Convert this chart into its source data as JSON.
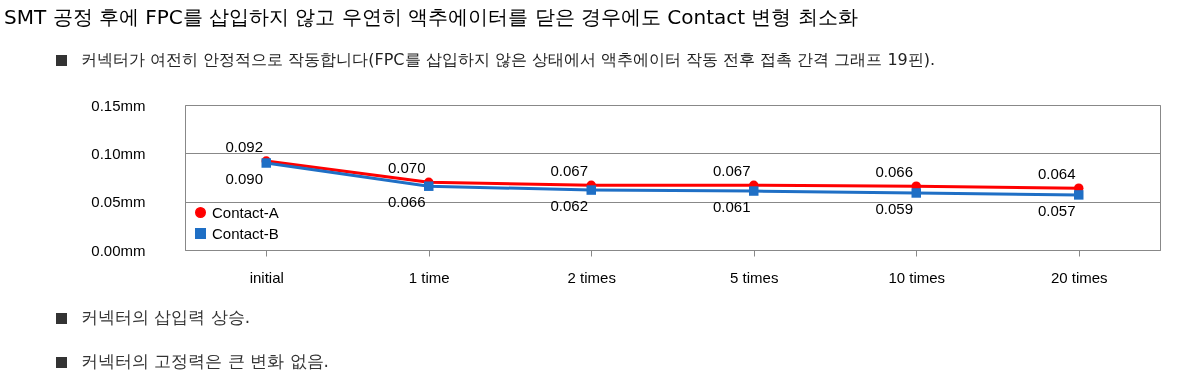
{
  "chart_data": {
    "type": "line",
    "title": "SMT 공정 후에 FPC를 삽입하지 않고 우연히 액추에이터를 닫은 경우에도 Contact 변형 최소화",
    "subtitle": "커넥터가 여전히 안정적으로 작동합니다(FPC를 삽입하지 않은 상태에서 액추에이터 작동 전후 접촉 간격 그래프 19핀).",
    "annotations": [
      "커넥터의 삽입력 상승.",
      "커넥터의 고정력은 큰 변화 없음."
    ],
    "categories": [
      "initial",
      "1 time",
      "2 times",
      "5 times",
      "10 times",
      "20 times"
    ],
    "series": [
      {
        "name": "Contact-A",
        "color": "#ff0000",
        "marker": "circle",
        "values": [
          0.092,
          0.07,
          0.067,
          0.067,
          0.066,
          0.064
        ],
        "value_labels": [
          "0.092",
          "0.070",
          "0.067",
          "0.067",
          "0.066",
          "0.064"
        ]
      },
      {
        "name": "Contact-B",
        "color": "#1f6fc5",
        "marker": "square",
        "values": [
          0.09,
          0.066,
          0.062,
          0.061,
          0.059,
          0.057
        ],
        "value_labels": [
          "0.090",
          "0.066",
          "0.062",
          "0.061",
          "0.059",
          "0.057"
        ]
      }
    ],
    "ylim": [
      0,
      0.15
    ],
    "yticks": [
      {
        "value": 0,
        "label": "0.00mm"
      },
      {
        "value": 0.05,
        "label": "0.05mm"
      },
      {
        "value": 0.1,
        "label": "0.10mm"
      },
      {
        "value": 0.15,
        "label": "0.15mm"
      }
    ],
    "grid": "y",
    "legend": "bottom left"
  }
}
